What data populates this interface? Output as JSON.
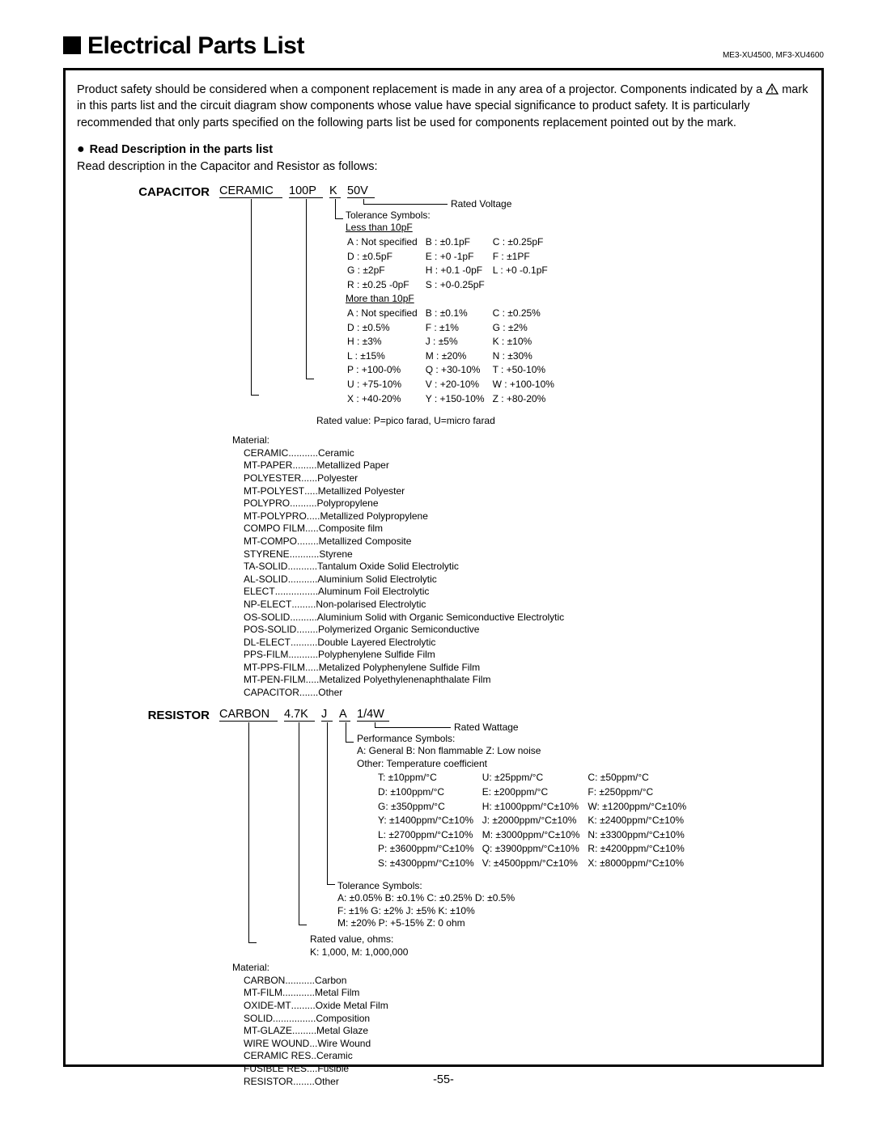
{
  "header": {
    "title": "Electrical Parts List",
    "model": "ME3-XU4500, MF3-XU4600"
  },
  "safety_paragraph": "Product safety should be considered when a component replacement is made in any area of a projector. Components indicated by a ⚠ mark in this parts list and the circuit diagram show components whose value have special significance to product safety. It is particularly recommended that only parts specified on the following parts list be used for components replacement pointed out by the mark.",
  "read_header": "Read Description in the parts list",
  "read_desc": "Read description in the Capacitor and Resistor as follows:",
  "capacitor": {
    "label": "CAPACITOR",
    "example": {
      "p1": "CERAMIC",
      "p2": "100P",
      "p3": "K",
      "p4": "50V"
    },
    "rated_voltage_label": "Rated Voltage",
    "tol_label": "Tolerance Symbols:",
    "less_than": "Less than 10pF",
    "lt_rows": [
      [
        "A : Not specified",
        "B : ±0.1pF",
        "C : ±0.25pF"
      ],
      [
        "D : ±0.5pF",
        "E : +0 -1pF",
        "F : ±1PF"
      ],
      [
        "G : ±2pF",
        "H : +0.1 -0pF",
        "L : +0 -0.1pF"
      ],
      [
        "R : ±0.25 -0pF",
        "S : +0-0.25pF",
        ""
      ]
    ],
    "more_than": "More than 10pF",
    "mt_rows": [
      [
        "A : Not specified",
        "B : ±0.1%",
        "C : ±0.25%"
      ],
      [
        "D : ±0.5%",
        "F : ±1%",
        "G : ±2%"
      ],
      [
        "H : ±3%",
        "J : ±5%",
        "K : ±10%"
      ],
      [
        "L : ±15%",
        "M : ±20%",
        "N : ±30%"
      ],
      [
        "P : +100-0%",
        "Q : +30-10%",
        "T : +50-10%"
      ],
      [
        "U : +75-10%",
        "V : +20-10%",
        "W : +100-10%"
      ],
      [
        "X : +40-20%",
        "Y : +150-10%",
        "Z : +80-20%"
      ]
    ],
    "rated_value_label": "Rated value: P=pico farad, U=micro farad",
    "material_label": "Material:",
    "materials": [
      [
        "CERAMIC",
        "...........",
        "Ceramic"
      ],
      [
        "MT-PAPER",
        ".........",
        "Metallized Paper"
      ],
      [
        "POLYESTER",
        "......",
        "Polyester"
      ],
      [
        "MT-POLYEST",
        ".....",
        "Metallized Polyester"
      ],
      [
        "POLYPRO",
        "..........",
        "Polypropylene"
      ],
      [
        "MT-POLYPRO",
        ".....",
        "Metallized Polypropylene"
      ],
      [
        "COMPO FILM",
        ".....",
        "Composite film"
      ],
      [
        "MT-COMPO",
        "........",
        "Metallized Composite"
      ],
      [
        "STYRENE",
        "...........",
        "Styrene"
      ],
      [
        "TA-SOLID",
        "...........",
        "Tantalum Oxide Solid Electrolytic"
      ],
      [
        "AL-SOLID",
        "...........",
        "Aluminium Solid Electrolytic"
      ],
      [
        "ELECT",
        "................",
        "Aluminum Foil Electrolytic"
      ],
      [
        "NP-ELECT",
        ".........",
        "Non-polarised Electrolytic"
      ],
      [
        "OS-SOLID",
        "..........",
        "Aluminium Solid with Organic Semiconductive Electrolytic"
      ],
      [
        "POS-SOLID",
        "........",
        "Polymerized Organic Semiconductive"
      ],
      [
        "DL-ELECT",
        "..........",
        "Double Layered Electrolytic"
      ],
      [
        "PPS-FILM",
        "...........",
        "Polyphenylene Sulfide Film"
      ],
      [
        "MT-PPS-FILM",
        ".....",
        "Metalized Polyphenylene Sulfide Film"
      ],
      [
        "MT-PEN-FILM",
        ".....",
        "Metalized Polyethylenenaphthalate Film"
      ],
      [
        "CAPACITOR",
        ".......",
        "Other"
      ]
    ]
  },
  "resistor": {
    "label": "RESISTOR",
    "example": {
      "p1": "CARBON",
      "p2": "4.7K",
      "p3": "J",
      "p4": "A",
      "p5": "1/4W"
    },
    "rated_wattage_label": "Rated Wattage",
    "perf_label": "Performance Symbols:",
    "perf_line1": "A: General  B: Non flammable  Z: Low noise",
    "perf_line2": "Other: Temperature coefficient",
    "perf_rows": [
      [
        "T: ±10ppm/°C",
        "U: ±25ppm/°C",
        "C: ±50ppm/°C",
        ""
      ],
      [
        "D: ±100ppm/°C",
        "E: ±200ppm/°C",
        "F: ±250ppm/°C",
        ""
      ],
      [
        "G: ±350ppm/°C",
        "H: ±1000ppm/°C±10%",
        "W: ±1200ppm/°C±10%",
        ""
      ],
      [
        "Y: ±1400ppm/°C±10%",
        "J: ±2000ppm/°C±10%",
        "K: ±2400ppm/°C±10%",
        ""
      ],
      [
        "L: ±2700ppm/°C±10%",
        "M: ±3000ppm/°C±10%",
        "N: ±3300ppm/°C±10%",
        ""
      ],
      [
        "P: ±3600ppm/°C±10%",
        "Q: ±3900ppm/°C±10%",
        "R: ±4200ppm/°C±10%",
        ""
      ],
      [
        "S: ±4300ppm/°C±10%",
        "V: ±4500ppm/°C±10%",
        "X: ±8000ppm/°C±10%",
        ""
      ]
    ],
    "tol_label": "Tolerance Symbols:",
    "tol_line1": "A: ±0.05%  B: ±0.1%  C: ±0.25%  D: ±0.5%",
    "tol_line2": "F: ±1%       G: ±2%    J: ±5%       K: ±10%",
    "tol_line3": "M: ±20%    P: +5-15%  Z: 0 ohm",
    "rated_value_label": "Rated value, ohms:",
    "rated_value_line": "K: 1,000,  M: 1,000,000",
    "material_label": "Material:",
    "materials": [
      [
        "CARBON",
        "...........",
        "Carbon"
      ],
      [
        "MT-FILM",
        "............",
        "Metal Film"
      ],
      [
        "OXIDE-MT",
        ".........",
        "Oxide Metal Film"
      ],
      [
        "SOLID",
        "................",
        "Composition"
      ],
      [
        "MT-GLAZE",
        ".........",
        "Metal Glaze"
      ],
      [
        "WIRE WOUND",
        "...",
        "Wire Wound"
      ],
      [
        "CERAMIC RES",
        "..",
        "Ceramic"
      ],
      [
        "FUSIBLE RES",
        "....",
        "Fusible"
      ],
      [
        "RESISTOR ",
        "........",
        "Other"
      ]
    ]
  },
  "page_number": "-55-"
}
